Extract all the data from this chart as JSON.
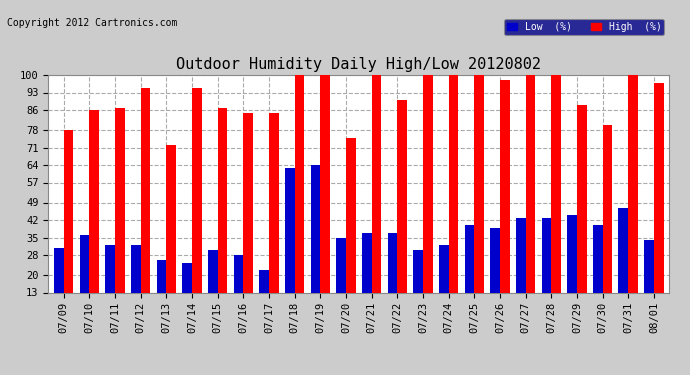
{
  "title": "Outdoor Humidity Daily High/Low 20120802",
  "copyright": "Copyright 2012 Cartronics.com",
  "legend_low": "Low  (%)",
  "legend_high": "High  (%)",
  "dates": [
    "07/09",
    "07/10",
    "07/11",
    "07/12",
    "07/13",
    "07/14",
    "07/15",
    "07/16",
    "07/17",
    "07/18",
    "07/19",
    "07/20",
    "07/21",
    "07/22",
    "07/23",
    "07/24",
    "07/25",
    "07/26",
    "07/27",
    "07/28",
    "07/29",
    "07/30",
    "07/31",
    "08/01"
  ],
  "high": [
    78,
    86,
    87,
    95,
    72,
    95,
    87,
    85,
    85,
    100,
    100,
    75,
    100,
    90,
    100,
    100,
    100,
    98,
    100,
    100,
    88,
    80,
    100,
    97
  ],
  "low": [
    31,
    36,
    32,
    32,
    26,
    25,
    30,
    28,
    22,
    63,
    64,
    35,
    37,
    37,
    30,
    32,
    40,
    39,
    43,
    43,
    44,
    40,
    47,
    34
  ],
  "high_color": "#ff0000",
  "low_color": "#0000cc",
  "outer_bg_color": "#cccccc",
  "plot_bg_color": "#ffffff",
  "grid_color": "#aaaaaa",
  "yticks": [
    13,
    20,
    28,
    35,
    42,
    49,
    57,
    64,
    71,
    78,
    86,
    93,
    100
  ],
  "ymin": 13,
  "ymax": 100,
  "title_fontsize": 11,
  "tick_fontsize": 7.5,
  "bar_width": 0.38
}
